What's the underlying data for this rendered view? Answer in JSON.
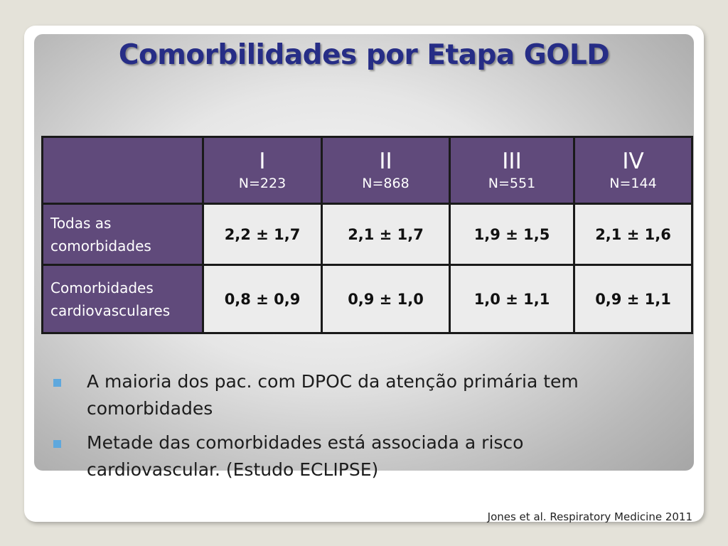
{
  "slide": {
    "title": "Comorbilidades por Etapa GOLD",
    "reference": "Jones et al. Respiratory Medicine 2011"
  },
  "table": {
    "columns": [
      {
        "stage": "I",
        "n": "N=223"
      },
      {
        "stage": "II",
        "n": "N=868"
      },
      {
        "stage": "III",
        "n": "N=551"
      },
      {
        "stage": "IV",
        "n": "N=144"
      }
    ],
    "rows": [
      {
        "label_line1": "Todas as",
        "label_line2": "comorbidades",
        "values": [
          "2,2 ± 1,7",
          "2,1 ± 1,7",
          "1,9 ± 1,5",
          "2,1 ± 1,6"
        ]
      },
      {
        "label_line1": "Comorbidades",
        "label_line2": "cardiovasculares",
        "values": [
          "0,8 ± 0,9",
          "0,9 ± 1,0",
          "1,0 ± 1,1",
          "0,9 ± 1,1"
        ]
      }
    ]
  },
  "bullets": [
    {
      "line1": "A maioria dos pac. com DPOC da atenção primária tem",
      "line2": "comorbidades"
    },
    {
      "line1": "Metade das comorbidades está associada a risco",
      "line2": "cardiovascular. (Estudo ECLIPSE)"
    }
  ],
  "colors": {
    "title": "#262d86",
    "header_fill": "#604a7b",
    "bullet_marker": "#5fa8dd"
  }
}
